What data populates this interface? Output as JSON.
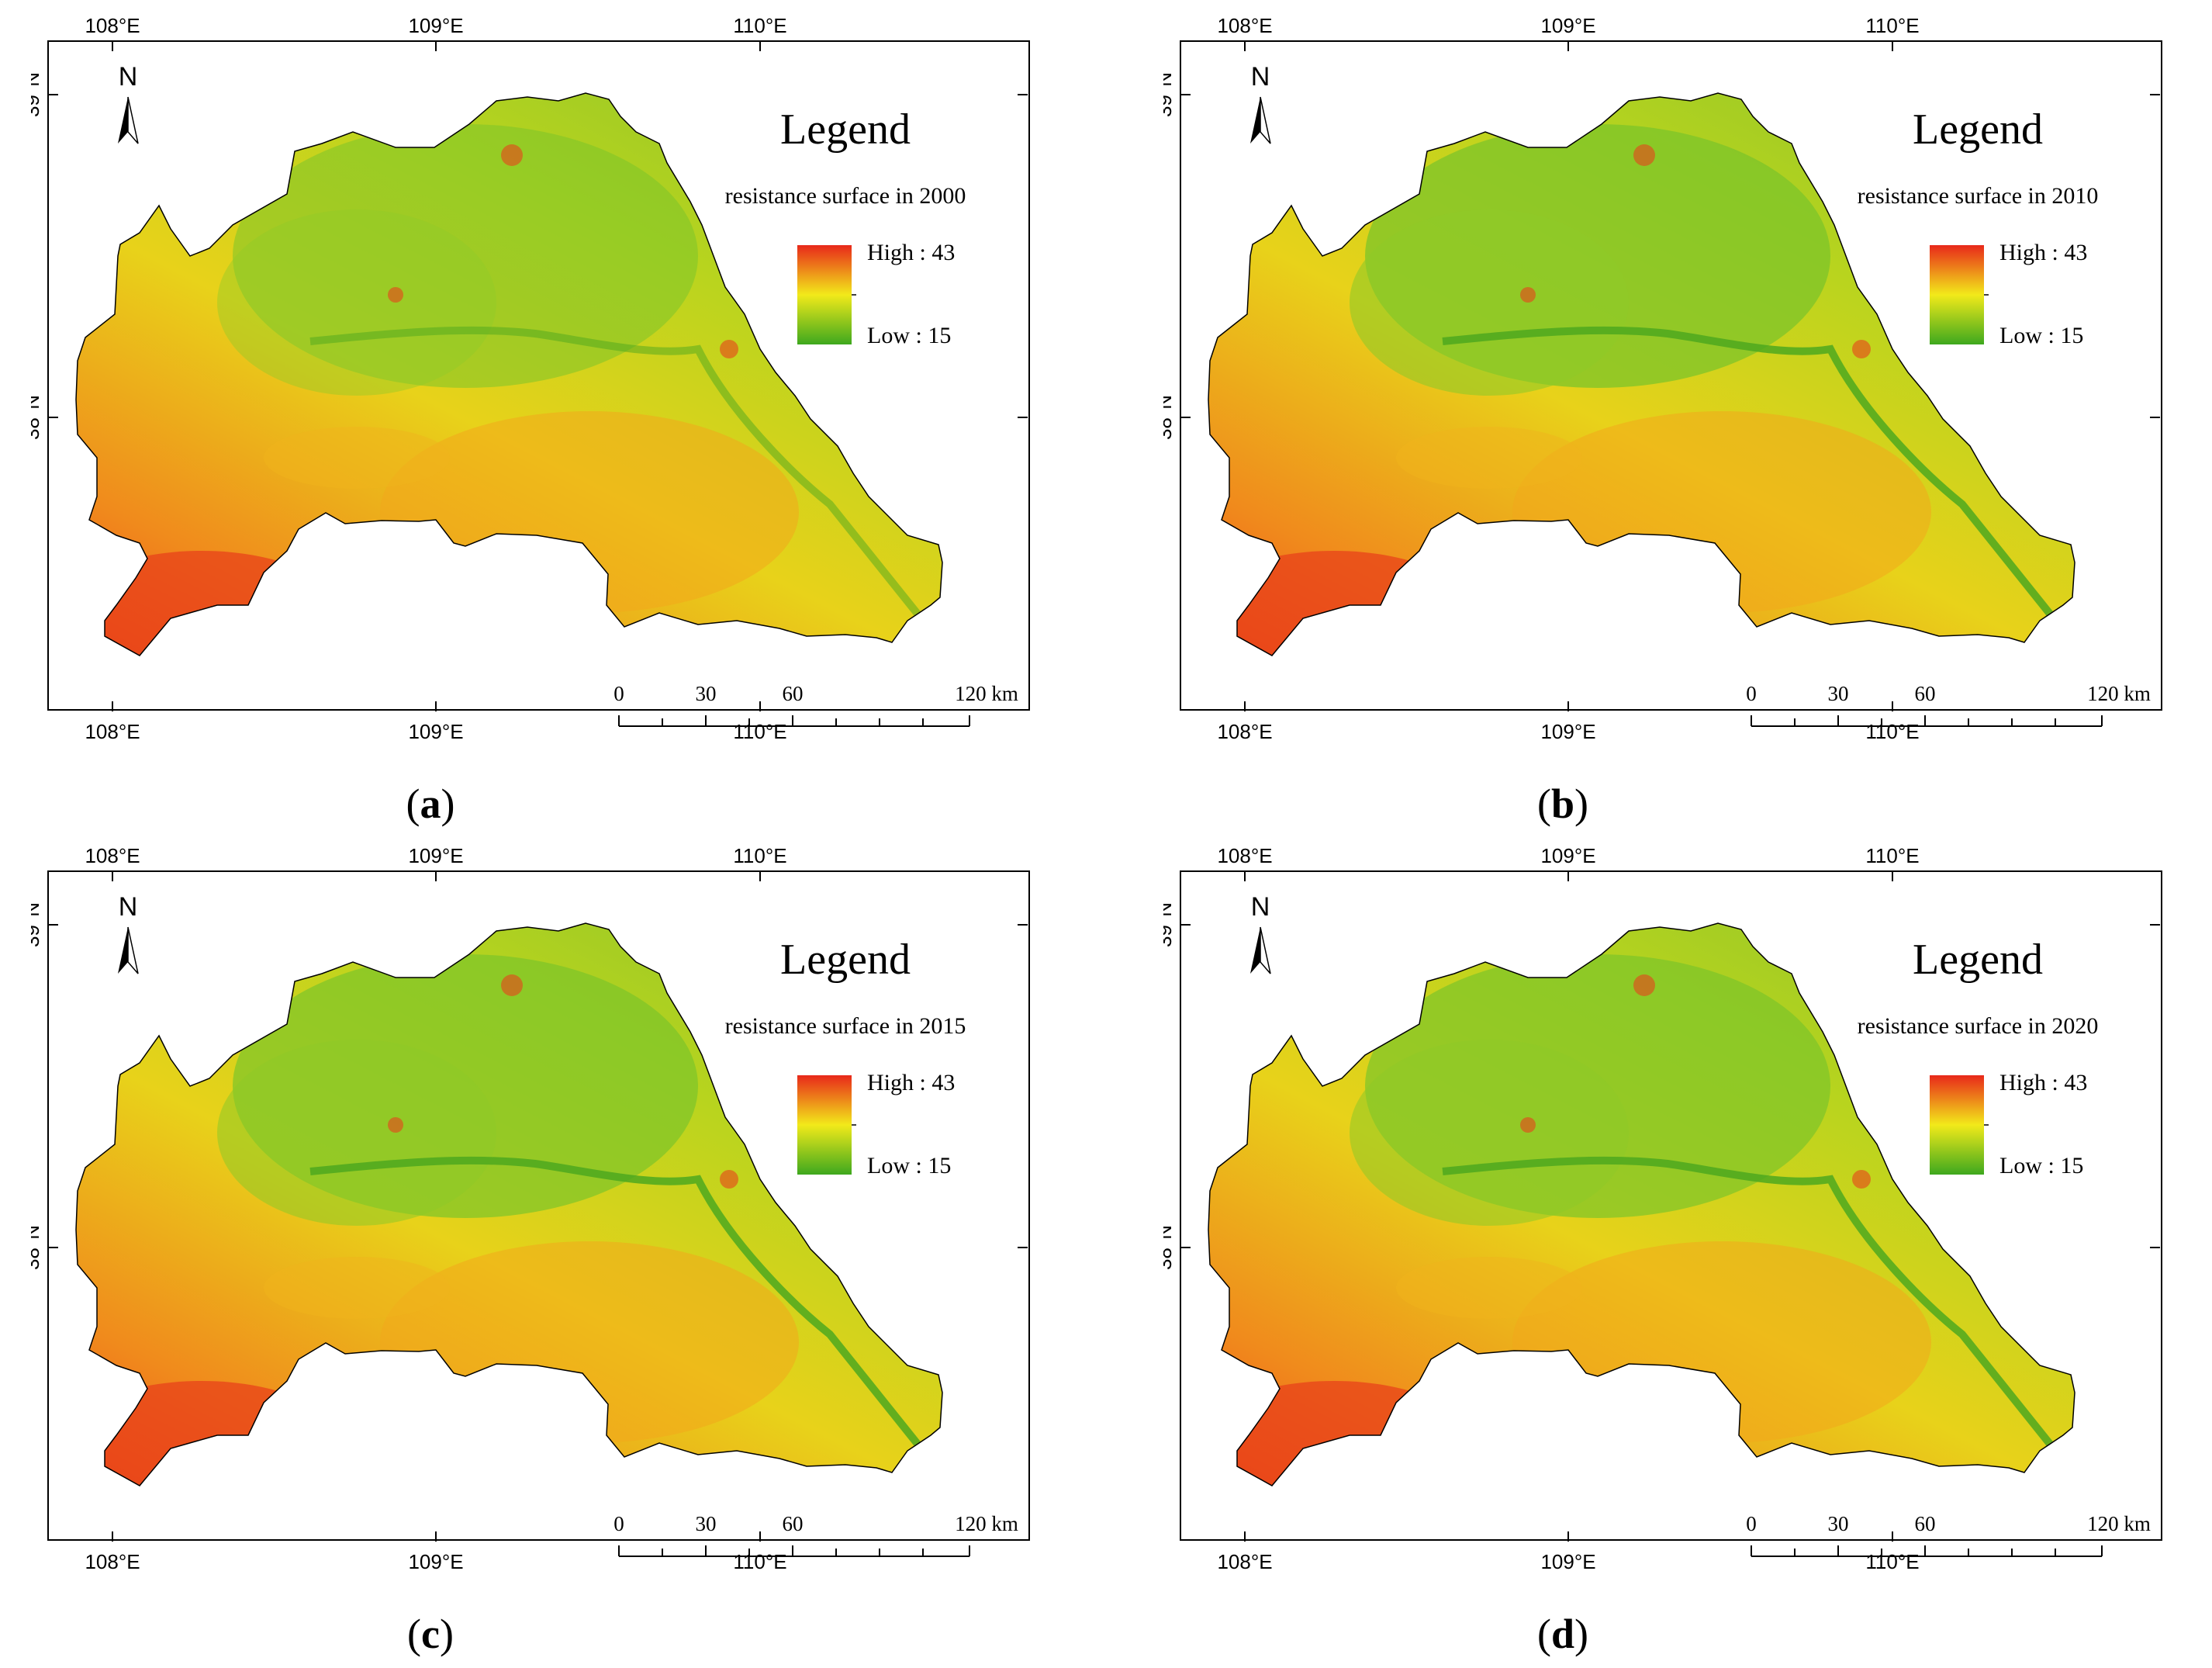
{
  "panels": [
    {
      "caption_letter": "a",
      "legend_title": "Legend",
      "legend_subtitle": "resistance surface in 2000",
      "legend_high": "High : 43",
      "legend_low": "Low : 15"
    },
    {
      "caption_letter": "b",
      "legend_title": "Legend",
      "legend_subtitle": "resistance surface in 2010",
      "legend_high": "High : 43",
      "legend_low": "Low : 15"
    },
    {
      "caption_letter": "c",
      "legend_title": "Legend",
      "legend_subtitle": "resistance surface in 2015",
      "legend_high": "High : 43",
      "legend_low": "Low : 15"
    },
    {
      "caption_letter": "d",
      "legend_title": "Legend",
      "legend_subtitle": "resistance surface in 2020",
      "legend_high": "High : 43",
      "legend_low": "Low : 15"
    }
  ],
  "graticule": {
    "lon_labels": [
      "108°E",
      "109°E",
      "110°E"
    ],
    "lat_labels": [
      "39°N",
      "38°N"
    ]
  },
  "north_arrow_label": "N",
  "scale_bar": {
    "ticks": [
      "0",
      "30",
      "60",
      "120 km"
    ]
  },
  "colors": {
    "high": "#e8281a",
    "mid": "#f2ea1a",
    "low": "#3ea81e",
    "outline": "#000000"
  },
  "icons": {
    "north_arrow": "north-arrow-icon"
  }
}
